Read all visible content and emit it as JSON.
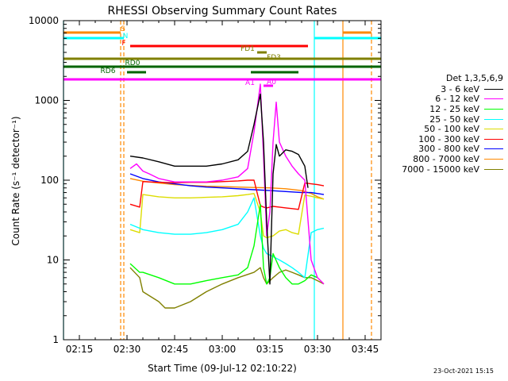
{
  "chart_data": {
    "type": "line",
    "title": "RHESSI Observing Summary Count Rates",
    "xlabel": "Start Time (09-Jul-12 02:10:22)",
    "ylabel": "Count Rate (s⁻¹ detector⁻¹)",
    "yscale": "log",
    "ylim": [
      1,
      10000
    ],
    "xlim": [
      "02:10",
      "03:50"
    ],
    "x_ticks": [
      "02:15",
      "02:30",
      "02:45",
      "03:00",
      "03:15",
      "03:30",
      "03:45"
    ],
    "y_ticks": [
      "1",
      "10",
      "100",
      "1000",
      "10000"
    ],
    "grid": false,
    "legend_title": "Det 1,3,5,6,9",
    "legend_position": "right",
    "series": [
      {
        "name": "3 - 6 keV",
        "color": "#000000",
        "x": [
          "02:31",
          "02:35",
          "02:40",
          "02:45",
          "02:50",
          "02:55",
          "03:00",
          "03:05",
          "03:08",
          "03:10",
          "03:12",
          "03:13",
          "03:14",
          "03:15",
          "03:16",
          "03:17",
          "03:18",
          "03:20",
          "03:22",
          "03:24",
          "03:26",
          "03:27"
        ],
        "y": [
          200,
          190,
          170,
          150,
          150,
          150,
          160,
          180,
          230,
          500,
          1200,
          300,
          30,
          5,
          120,
          280,
          200,
          240,
          230,
          210,
          150,
          80
        ]
      },
      {
        "name": "6 - 12 keV",
        "color": "#ff00ff",
        "x": [
          "02:31",
          "02:33",
          "02:35",
          "02:37",
          "02:40",
          "02:45",
          "02:50",
          "02:55",
          "03:00",
          "03:05",
          "03:08",
          "03:10",
          "03:12",
          "03:13",
          "03:14",
          "03:15",
          "03:16",
          "03:17",
          "03:18",
          "03:20",
          "03:22",
          "03:24",
          "03:26",
          "03:28",
          "03:30",
          "03:32"
        ],
        "y": [
          140,
          160,
          130,
          120,
          105,
          95,
          95,
          95,
          100,
          110,
          140,
          400,
          1600,
          200,
          20,
          40,
          300,
          950,
          300,
          200,
          150,
          120,
          100,
          10,
          6,
          5
        ]
      },
      {
        "name": "12 - 25 keV",
        "color": "#00ff00",
        "x": [
          "02:31",
          "02:34",
          "02:35",
          "02:40",
          "02:45",
          "02:50",
          "02:55",
          "03:00",
          "03:05",
          "03:08",
          "03:10",
          "03:12",
          "03:13",
          "03:14",
          "03:15",
          "03:16",
          "03:18",
          "03:20",
          "03:22",
          "03:24",
          "03:26",
          "03:28",
          "03:30"
        ],
        "y": [
          9,
          7,
          7,
          6,
          5,
          5,
          5.5,
          6,
          6.5,
          8,
          15,
          50,
          8,
          5,
          6,
          12,
          8,
          6,
          5,
          5,
          5.5,
          6.5,
          6
        ]
      },
      {
        "name": "25 - 50 keV",
        "color": "#00ffff",
        "x": [
          "02:31",
          "02:34",
          "02:35",
          "02:40",
          "02:45",
          "02:50",
          "02:55",
          "03:00",
          "03:05",
          "03:08",
          "03:10",
          "03:12",
          "03:13",
          "03:14",
          "03:16",
          "03:18",
          "03:20",
          "03:22",
          "03:24",
          "03:26",
          "03:28",
          "03:30",
          "03:32"
        ],
        "y": [
          28,
          25,
          24,
          22,
          21,
          21,
          22,
          24,
          28,
          40,
          60,
          20,
          14,
          12,
          11,
          10,
          9,
          8,
          7,
          6,
          22,
          24,
          25
        ]
      },
      {
        "name": "50 - 100 keV",
        "color": "#dddd00",
        "x": [
          "02:31",
          "02:34",
          "02:35",
          "02:40",
          "02:45",
          "02:50",
          "02:55",
          "03:00",
          "03:05",
          "03:08",
          "03:10",
          "03:12",
          "03:13",
          "03:14",
          "03:16",
          "03:18",
          "03:20",
          "03:22",
          "03:24",
          "03:26",
          "03:28",
          "03:30",
          "03:32"
        ],
        "y": [
          24,
          22,
          66,
          62,
          60,
          60,
          61,
          62,
          64,
          66,
          68,
          40,
          20,
          19,
          20,
          23,
          24,
          22,
          21,
          65,
          63,
          60,
          58
        ]
      },
      {
        "name": "100 - 300 keV",
        "color": "#ff0000",
        "x": [
          "02:31",
          "02:34",
          "02:35",
          "02:40",
          "02:45",
          "02:50",
          "02:55",
          "03:00",
          "03:05",
          "03:08",
          "03:10",
          "03:12",
          "03:13",
          "03:14",
          "03:16",
          "03:18",
          "03:20",
          "03:22",
          "03:24",
          "03:26",
          "03:28",
          "03:30",
          "03:32"
        ],
        "y": [
          50,
          46,
          96,
          94,
          93,
          94,
          94,
          96,
          98,
          100,
          100,
          48,
          46,
          45,
          47,
          46,
          45,
          44,
          43,
          92,
          90,
          88,
          85
        ]
      },
      {
        "name": "300 - 800 keV",
        "color": "#0000ff",
        "x": [
          "02:31",
          "02:35",
          "02:40",
          "02:45",
          "02:50",
          "02:55",
          "03:00",
          "03:05",
          "03:10",
          "03:15",
          "03:20",
          "03:25",
          "03:28",
          "03:30",
          "03:32"
        ],
        "y": [
          120,
          105,
          95,
          90,
          85,
          82,
          80,
          78,
          76,
          74,
          72,
          70,
          70,
          68,
          66
        ]
      },
      {
        "name": "800 - 7000 keV",
        "color": "#ff8800",
        "x": [
          "02:31",
          "02:35",
          "02:40",
          "02:45",
          "02:50",
          "02:55",
          "03:00",
          "03:05",
          "03:10",
          "03:15",
          "03:20",
          "03:25",
          "03:28",
          "03:30",
          "03:32"
        ],
        "y": [
          105,
          97,
          92,
          88,
          86,
          84,
          83,
          82,
          81,
          80,
          78,
          74,
          68,
          62,
          58
        ]
      },
      {
        "name": "7000 - 15000 keV",
        "color": "#808000",
        "x": [
          "02:31",
          "02:34",
          "02:35",
          "02:40",
          "02:42",
          "02:45",
          "02:50",
          "02:55",
          "03:00",
          "03:05",
          "03:10",
          "03:12",
          "03:13",
          "03:14",
          "03:16",
          "03:18",
          "03:20",
          "03:22",
          "03:24",
          "03:26",
          "03:28",
          "03:30",
          "03:32"
        ],
        "y": [
          8,
          6,
          4,
          3,
          2.5,
          2.5,
          3,
          4,
          5,
          6,
          7,
          8,
          6,
          5,
          6,
          7,
          7.5,
          7,
          6.5,
          6,
          6,
          5.5,
          5
        ]
      }
    ],
    "flag_bars": [
      {
        "label": "S",
        "color": "#ff8800",
        "segments": [
          [
            "02:10",
            "02:28"
          ],
          [
            "03:38",
            "03:47"
          ]
        ]
      },
      {
        "label": "N",
        "color": "#00ffff",
        "segments": [
          [
            "02:10",
            "02:29"
          ],
          [
            "03:29",
            "03:50"
          ]
        ]
      },
      {
        "label": "F",
        "color": "#ff0000",
        "segments": [
          [
            "02:31",
            "03:27"
          ]
        ]
      },
      {
        "label": "FD1",
        "color": "#808000",
        "segments": [
          [
            "03:11",
            "03:14"
          ]
        ]
      },
      {
        "label": "FD3",
        "color": "#808000",
        "segments": [
          [
            "02:10",
            "03:50"
          ]
        ]
      },
      {
        "label": "RD0",
        "color": "#006400",
        "segments": [
          [
            "02:10",
            "03:50"
          ]
        ]
      },
      {
        "label": "RD6",
        "color": "#006400",
        "segments": [
          [
            "02:30",
            "02:36"
          ],
          [
            "03:09",
            "03:24"
          ]
        ]
      },
      {
        "label": "A1",
        "color": "#ff00ff",
        "segments": [
          [
            "02:10",
            "03:50"
          ]
        ]
      },
      {
        "label": "A0",
        "color": "#ff00ff",
        "segments": [
          [
            "03:13",
            "03:16"
          ]
        ]
      }
    ],
    "vertical_markers": [
      {
        "x": "02:10",
        "color": "#00ffff",
        "style": "solid"
      },
      {
        "x": "02:28",
        "color": "#ff8800",
        "style": "dashed"
      },
      {
        "x": "02:29",
        "color": "#ff8800",
        "style": "dashed"
      },
      {
        "x": "03:29",
        "color": "#00ffff",
        "style": "solid"
      },
      {
        "x": "03:38",
        "color": "#ff8800",
        "style": "solid"
      },
      {
        "x": "03:47",
        "color": "#ff8800",
        "style": "dashed"
      }
    ]
  },
  "footer": {
    "date_stamp": "23-Oct-2021 15:15"
  }
}
